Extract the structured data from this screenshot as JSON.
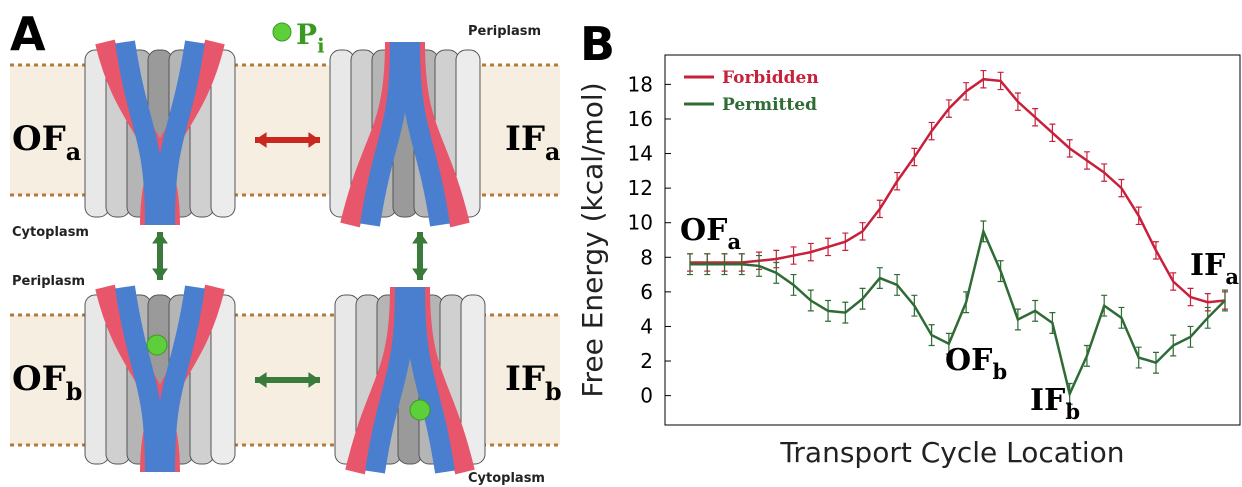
{
  "panel_a": {
    "label": "A",
    "states": [
      {
        "text": "OF",
        "sub": "a"
      },
      {
        "text": "IF",
        "sub": "a"
      },
      {
        "text": "OF",
        "sub": "b"
      },
      {
        "text": "IF",
        "sub": "b"
      }
    ],
    "compartments": [
      "Periplasm",
      "Cytoplasm",
      "Periplasm",
      "Cytoplasm"
    ],
    "ligand": {
      "text": "P",
      "sub": "i"
    }
  },
  "chart_data": {
    "type": "line",
    "panel_label": "B",
    "y_label": "Free Energy (kcal/mol)",
    "x_label": "Transport Cycle Location",
    "categories": [
      null,
      null,
      null,
      null,
      null,
      null,
      null,
      null,
      null,
      null,
      null,
      null,
      null,
      null,
      null,
      null,
      null,
      null,
      null,
      null,
      null,
      null,
      null,
      null,
      null,
      null,
      null,
      null,
      null,
      null,
      null,
      null
    ],
    "series": [
      {
        "name": "Forbidden",
        "color": "#c8203a",
        "values": [
          7.7,
          7.7,
          7.7,
          7.7,
          7.8,
          7.9,
          8.1,
          8.3,
          8.6,
          8.9,
          9.5,
          10.8,
          12.4,
          13.8,
          15.3,
          16.6,
          17.6,
          18.3,
          18.2,
          17.0,
          16.1,
          15.2,
          14.3,
          13.6,
          12.9,
          12.0,
          10.4,
          8.4,
          6.6,
          5.7,
          5.4,
          5.5
        ],
        "errors": [
          0.5,
          0.5,
          0.5,
          0.5,
          0.5,
          0.5,
          0.5,
          0.5,
          0.5,
          0.5,
          0.5,
          0.5,
          0.5,
          0.5,
          0.5,
          0.5,
          0.5,
          0.5,
          0.5,
          0.5,
          0.5,
          0.5,
          0.5,
          0.5,
          0.5,
          0.5,
          0.5,
          0.5,
          0.5,
          0.5,
          0.5,
          0.5
        ]
      },
      {
        "name": "Permitted",
        "color": "#2f6b35",
        "values": [
          7.6,
          7.6,
          7.6,
          7.6,
          7.5,
          7.1,
          6.4,
          5.5,
          4.9,
          4.8,
          5.6,
          6.8,
          6.4,
          5.2,
          3.5,
          3.0,
          5.4,
          9.5,
          7.2,
          4.4,
          4.9,
          4.2,
          0.1,
          2.3,
          5.2,
          4.5,
          2.2,
          1.9,
          2.9,
          3.4,
          4.5,
          5.5
        ],
        "errors": [
          0.6,
          0.6,
          0.6,
          0.6,
          0.6,
          0.6,
          0.6,
          0.6,
          0.6,
          0.6,
          0.6,
          0.6,
          0.6,
          0.6,
          0.6,
          0.6,
          0.6,
          0.6,
          0.6,
          0.6,
          0.6,
          0.6,
          0.6,
          0.6,
          0.6,
          0.6,
          0.6,
          0.6,
          0.6,
          0.6,
          0.6,
          0.6
        ]
      }
    ],
    "ylim": [
      -1.7,
      19.7
    ],
    "yticks": [
      0,
      2,
      4,
      6,
      8,
      10,
      12,
      14,
      16,
      18
    ],
    "legend": "upper left",
    "annotations": [
      {
        "text": "OF",
        "sub": "a"
      },
      {
        "text": "IF",
        "sub": "a"
      },
      {
        "text": "OF",
        "sub": "b"
      },
      {
        "text": "IF",
        "sub": "b"
      }
    ]
  }
}
